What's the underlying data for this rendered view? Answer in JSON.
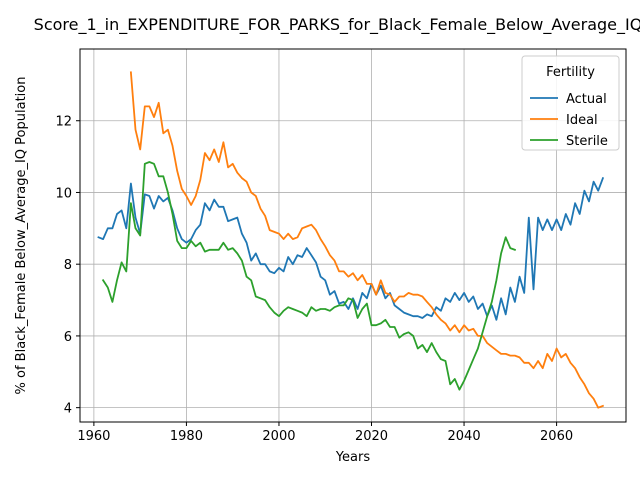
{
  "chart_data": {
    "type": "line",
    "title": "Score_1_in_EXPENDITURE_FOR_PARKS_for_Black_Female_Below_Average_IQ",
    "xlabel": "Years",
    "ylabel": "% of Black_Female Below_Average_IQ Population",
    "xlim": [
      1957,
      2075
    ],
    "ylim": [
      3.6,
      14.0
    ],
    "xticks": [
      1960,
      1980,
      2000,
      2020,
      2040,
      2060
    ],
    "yticks": [
      4,
      6,
      8,
      10,
      12
    ],
    "grid": true,
    "legend": {
      "title": "Fertility",
      "placement": "top-right"
    },
    "colors": {
      "Actual": "#1f77b4",
      "Ideal": "#ff7f0e",
      "Sterile": "#2ca02c"
    },
    "series": [
      {
        "name": "Actual",
        "x": [
          1961,
          1962,
          1963,
          1964,
          1965,
          1966,
          1967,
          1968,
          1969,
          1970,
          1971,
          1972,
          1973,
          1974,
          1975,
          1976,
          1977,
          1978,
          1979,
          1980,
          1981,
          1982,
          1983,
          1984,
          1985,
          1986,
          1987,
          1988,
          1989,
          1990,
          1991,
          1992,
          1993,
          1994,
          1995,
          1996,
          1997,
          1998,
          1999,
          2000,
          2001,
          2002,
          2003,
          2004,
          2005,
          2006,
          2007,
          2008,
          2009,
          2010,
          2011,
          2012,
          2013,
          2014,
          2015,
          2016,
          2017,
          2018,
          2019,
          2020,
          2021,
          2022,
          2023,
          2024,
          2025,
          2026,
          2027,
          2028,
          2029,
          2030,
          2031,
          2032,
          2033,
          2034,
          2035,
          2036,
          2037,
          2038,
          2039,
          2040,
          2041,
          2042,
          2043,
          2044,
          2045,
          2046,
          2047,
          2048,
          2049,
          2050,
          2051,
          2052,
          2053,
          2054,
          2055,
          2056,
          2057,
          2058,
          2059,
          2060,
          2061,
          2062,
          2063,
          2064,
          2065,
          2066,
          2067,
          2068,
          2069,
          2070
        ],
        "y": [
          8.75,
          8.7,
          9.0,
          9.0,
          9.4,
          9.5,
          9.0,
          10.25,
          9.3,
          8.85,
          9.95,
          9.9,
          9.55,
          9.9,
          9.75,
          9.85,
          9.5,
          9.0,
          8.7,
          8.6,
          8.7,
          8.95,
          9.1,
          9.7,
          9.5,
          9.8,
          9.6,
          9.6,
          9.2,
          9.25,
          9.3,
          8.85,
          8.6,
          8.1,
          8.3,
          8.0,
          8.0,
          7.8,
          7.75,
          7.9,
          7.8,
          8.2,
          8.0,
          8.25,
          8.2,
          8.45,
          8.25,
          8.05,
          7.65,
          7.55,
          7.15,
          7.25,
          6.9,
          6.95,
          6.75,
          7.05,
          6.75,
          7.2,
          7.05,
          7.45,
          7.15,
          7.4,
          7.05,
          7.2,
          6.85,
          6.75,
          6.65,
          6.6,
          6.55,
          6.55,
          6.5,
          6.6,
          6.55,
          6.8,
          6.7,
          7.05,
          6.95,
          7.2,
          7.0,
          7.2,
          6.95,
          7.1,
          6.75,
          6.9,
          6.55,
          6.85,
          6.45,
          7.05,
          6.6,
          7.35,
          6.95,
          7.65,
          7.2,
          9.3,
          7.3,
          9.3,
          8.95,
          9.25,
          8.95,
          9.25,
          8.95,
          9.4,
          9.1,
          9.7,
          9.4,
          10.05,
          9.75,
          10.3,
          10.05,
          10.4
        ]
      },
      {
        "name": "Ideal",
        "x": [
          1968,
          1969,
          1970,
          1971,
          1972,
          1973,
          1974,
          1975,
          1976,
          1977,
          1978,
          1979,
          1980,
          1981,
          1982,
          1983,
          1984,
          1985,
          1986,
          1987,
          1988,
          1989,
          1990,
          1991,
          1992,
          1993,
          1994,
          1995,
          1996,
          1997,
          1998,
          1999,
          2000,
          2001,
          2002,
          2003,
          2004,
          2005,
          2006,
          2007,
          2008,
          2009,
          2010,
          2011,
          2012,
          2013,
          2014,
          2015,
          2016,
          2017,
          2018,
          2019,
          2020,
          2021,
          2022,
          2023,
          2024,
          2025,
          2026,
          2027,
          2028,
          2029,
          2030,
          2031,
          2032,
          2033,
          2034,
          2035,
          2036,
          2037,
          2038,
          2039,
          2040,
          2041,
          2042,
          2043,
          2044,
          2045,
          2046,
          2047,
          2048,
          2049,
          2050,
          2051,
          2052,
          2053,
          2054,
          2055,
          2056,
          2057,
          2058,
          2059,
          2060,
          2061,
          2062,
          2063,
          2064,
          2065,
          2066,
          2067,
          2068,
          2069,
          2070
        ],
        "y": [
          13.35,
          11.75,
          11.2,
          12.4,
          12.4,
          12.1,
          12.5,
          11.65,
          11.75,
          11.3,
          10.6,
          10.1,
          9.9,
          9.65,
          9.9,
          10.35,
          11.1,
          10.9,
          11.2,
          10.85,
          11.4,
          10.7,
          10.8,
          10.55,
          10.4,
          10.3,
          10.0,
          9.9,
          9.55,
          9.35,
          8.95,
          8.9,
          8.85,
          8.7,
          8.85,
          8.7,
          8.75,
          9.0,
          9.05,
          9.1,
          8.95,
          8.7,
          8.5,
          8.25,
          8.1,
          7.8,
          7.8,
          7.65,
          7.75,
          7.55,
          7.7,
          7.45,
          7.45,
          7.15,
          7.55,
          7.2,
          7.15,
          6.95,
          7.1,
          7.1,
          7.2,
          7.15,
          7.15,
          7.1,
          6.95,
          6.8,
          6.6,
          6.45,
          6.35,
          6.15,
          6.3,
          6.1,
          6.3,
          6.15,
          6.2,
          6.0,
          6.0,
          5.8,
          5.7,
          5.6,
          5.5,
          5.5,
          5.45,
          5.45,
          5.4,
          5.25,
          5.25,
          5.1,
          5.3,
          5.1,
          5.5,
          5.3,
          5.65,
          5.4,
          5.5,
          5.25,
          5.1,
          4.85,
          4.65,
          4.4,
          4.25,
          4.0,
          4.05
        ]
      },
      {
        "name": "Sterile",
        "x": [
          1962,
          1963,
          1964,
          1965,
          1966,
          1967,
          1968,
          1969,
          1970,
          1971,
          1972,
          1973,
          1974,
          1975,
          1976,
          1977,
          1978,
          1979,
          1980,
          1981,
          1982,
          1983,
          1984,
          1985,
          1986,
          1987,
          1988,
          1989,
          1990,
          1991,
          1992,
          1993,
          1994,
          1995,
          1996,
          1997,
          1998,
          1999,
          2000,
          2001,
          2002,
          2003,
          2004,
          2005,
          2006,
          2007,
          2008,
          2009,
          2010,
          2011,
          2012,
          2013,
          2014,
          2015,
          2016,
          2017,
          2018,
          2019,
          2020,
          2021,
          2022,
          2023,
          2024,
          2025,
          2026,
          2027,
          2028,
          2029,
          2030,
          2031,
          2032,
          2033,
          2034,
          2035,
          2036,
          2037,
          2038,
          2039,
          2040,
          2041,
          2042,
          2043,
          2044,
          2045,
          2046,
          2047,
          2048,
          2049,
          2050,
          2051
        ],
        "y": [
          7.55,
          7.35,
          6.95,
          7.55,
          8.05,
          7.8,
          9.7,
          9.0,
          8.8,
          10.8,
          10.85,
          10.8,
          10.45,
          10.45,
          10.0,
          9.4,
          8.65,
          8.45,
          8.45,
          8.65,
          8.5,
          8.6,
          8.35,
          8.4,
          8.4,
          8.4,
          8.6,
          8.4,
          8.45,
          8.3,
          8.1,
          7.65,
          7.55,
          7.1,
          7.05,
          7.0,
          6.8,
          6.65,
          6.55,
          6.7,
          6.8,
          6.75,
          6.7,
          6.65,
          6.55,
          6.8,
          6.7,
          6.75,
          6.75,
          6.7,
          6.8,
          6.85,
          6.85,
          7.05,
          7.0,
          6.5,
          6.75,
          6.9,
          6.3,
          6.3,
          6.35,
          6.45,
          6.25,
          6.25,
          5.95,
          6.05,
          6.1,
          6.0,
          5.65,
          5.75,
          5.55,
          5.8,
          5.55,
          5.35,
          5.3,
          4.65,
          4.8,
          4.5,
          4.75,
          5.05,
          5.35,
          5.65,
          6.1,
          6.55,
          6.95,
          7.55,
          8.3,
          8.75,
          8.45,
          8.4
        ]
      }
    ]
  }
}
